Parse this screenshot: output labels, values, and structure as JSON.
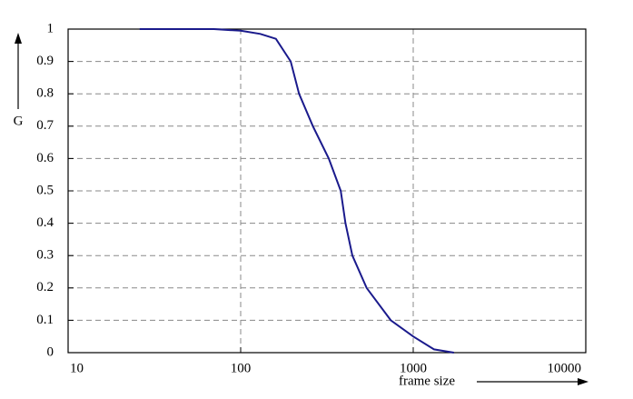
{
  "chart_data": {
    "type": "line",
    "x_label": "frame size",
    "y_label": "G",
    "log_x": true,
    "grid": true,
    "xlim": [
      10,
      10000
    ],
    "xticks": [
      10,
      100,
      1000,
      10000
    ],
    "ylim": [
      0,
      1
    ],
    "yticks": [
      0,
      0.1,
      0.2,
      0.3,
      0.4,
      0.5,
      0.6,
      0.7,
      0.8,
      0.9,
      1
    ],
    "series": [
      {
        "color": "#1a1a8c",
        "x": [
          26,
          50,
          70,
          100,
          130,
          160,
          195,
          218,
          262,
          324,
          380,
          405,
          444,
          537,
          741,
          1000,
          1320,
          1720
        ],
        "values": [
          1,
          1,
          1,
          0.995,
          0.985,
          0.97,
          0.9,
          0.8,
          0.7,
          0.6,
          0.5,
          0.4,
          0.3,
          0.2,
          0.1,
          0.05,
          0.01,
          0
        ]
      }
    ]
  }
}
